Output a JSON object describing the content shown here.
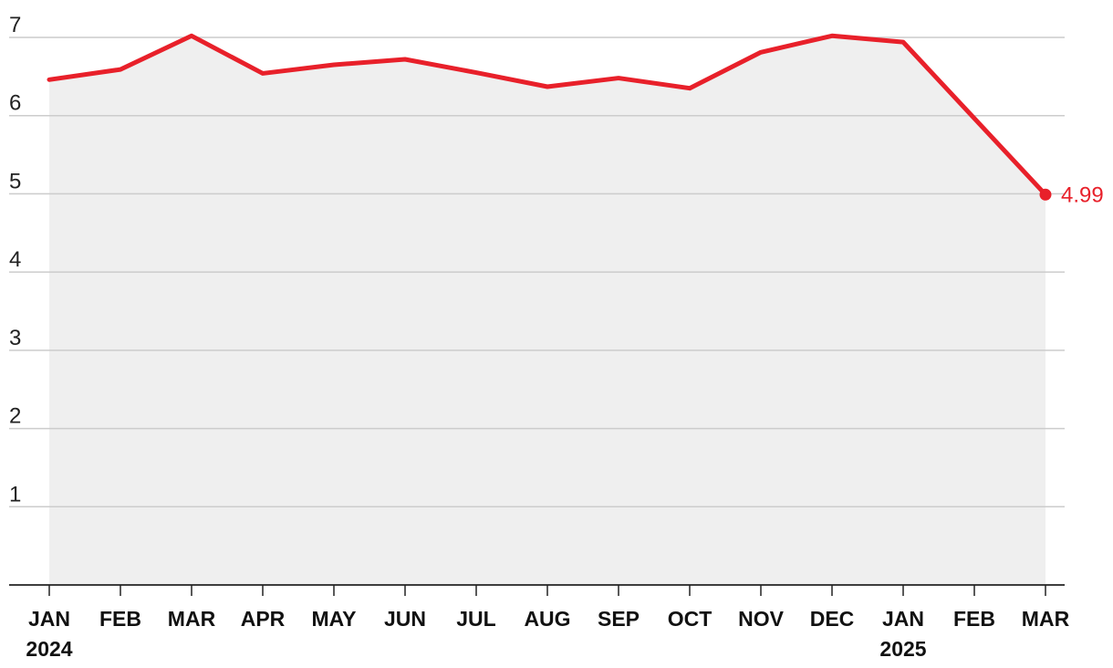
{
  "chart_data": {
    "type": "area",
    "title": "",
    "xlabel": "",
    "ylabel": "",
    "ylim": [
      0,
      7
    ],
    "yticks": [
      "1",
      "2",
      "3",
      "4",
      "5",
      "6",
      "7"
    ],
    "grid": true,
    "x": [
      "JAN 2024",
      "FEB",
      "MAR",
      "APR",
      "MAY",
      "JUN",
      "JUL",
      "AUG",
      "SEP",
      "OCT",
      "NOV",
      "DEC",
      "JAN 2025",
      "FEB",
      "MAR"
    ],
    "xtick_labels": [
      {
        "line1": "JAN",
        "line2": "2024"
      },
      {
        "line1": "FEB",
        "line2": ""
      },
      {
        "line1": "MAR",
        "line2": ""
      },
      {
        "line1": "APR",
        "line2": ""
      },
      {
        "line1": "MAY",
        "line2": ""
      },
      {
        "line1": "JUN",
        "line2": ""
      },
      {
        "line1": "JUL",
        "line2": ""
      },
      {
        "line1": "AUG",
        "line2": ""
      },
      {
        "line1": "SEP",
        "line2": ""
      },
      {
        "line1": "OCT",
        "line2": ""
      },
      {
        "line1": "NOV",
        "line2": ""
      },
      {
        "line1": "DEC",
        "line2": ""
      },
      {
        "line1": "JAN",
        "line2": "2025"
      },
      {
        "line1": "FEB",
        "line2": ""
      },
      {
        "line1": "MAR",
        "line2": ""
      }
    ],
    "series": [
      {
        "values": [
          6.46,
          6.59,
          7.02,
          6.54,
          6.65,
          6.72,
          6.55,
          6.37,
          6.48,
          6.35,
          6.81,
          7.02,
          6.94,
          null,
          4.99
        ],
        "color": "#e8202a"
      }
    ],
    "area_color": "#efefef",
    "end_label": "4.99",
    "end_label_color": "#e8202a"
  }
}
